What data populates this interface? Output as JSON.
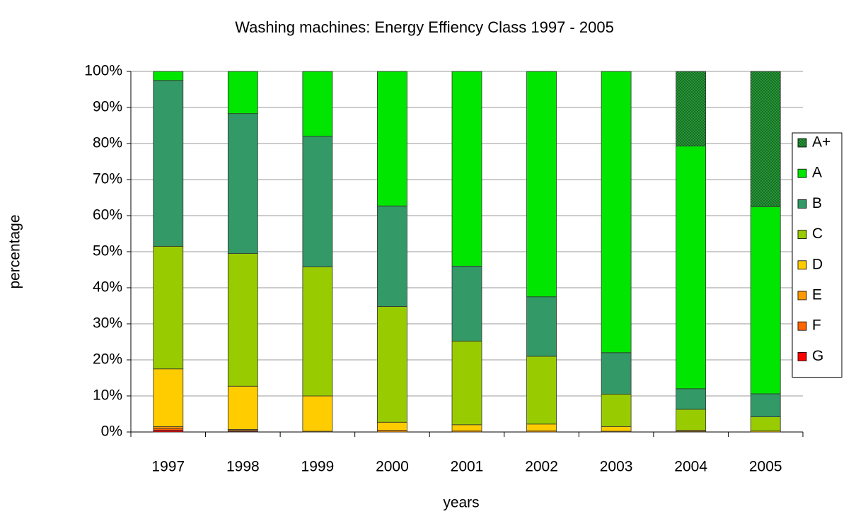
{
  "chart_data": {
    "type": "bar",
    "stacked": true,
    "title": "Washing machines: Energy Effiency Class 1997 - 2005",
    "xlabel": "years",
    "ylabel": "percentage",
    "categories": [
      "1997",
      "1998",
      "1999",
      "2000",
      "2001",
      "2002",
      "2003",
      "2004",
      "2005"
    ],
    "series": [
      {
        "name": "A+",
        "color": "#2e9e3a",
        "hatch": true,
        "values": [
          0,
          0,
          0,
          0,
          0,
          0,
          0,
          20.7,
          37.5
        ]
      },
      {
        "name": "A",
        "color": "#00e600",
        "values": [
          2.5,
          11.7,
          18,
          37.3,
          54,
          62.5,
          78,
          67.3,
          51.9
        ]
      },
      {
        "name": "B",
        "color": "#339966",
        "values": [
          46,
          38.8,
          36.2,
          27.9,
          20.8,
          16.5,
          11.5,
          5.7,
          6.4
        ]
      },
      {
        "name": "C",
        "color": "#99cc00",
        "values": [
          34,
          36.8,
          35.8,
          32.1,
          23.2,
          18.8,
          9,
          5.8,
          3.9
        ]
      },
      {
        "name": "D",
        "color": "#ffcc00",
        "values": [
          16,
          12,
          9.8,
          2.2,
          1.7,
          1.9,
          1.3,
          0.3,
          0.3
        ]
      },
      {
        "name": "E",
        "color": "#ff9900",
        "values": [
          0.5,
          0.3,
          0.2,
          0.5,
          0.3,
          0.3,
          0.2,
          0.2,
          0
        ]
      },
      {
        "name": "F",
        "color": "#ff6600",
        "values": [
          0.5,
          0.2,
          0,
          0,
          0,
          0,
          0,
          0,
          0
        ]
      },
      {
        "name": "G",
        "color": "#ff0000",
        "values": [
          0.5,
          0.2,
          0,
          0,
          0,
          0,
          0,
          0,
          0
        ]
      }
    ],
    "ylim": [
      0,
      100
    ],
    "yticks": [
      {
        "value": 0,
        "label": "0%"
      },
      {
        "value": 10,
        "label": "10%"
      },
      {
        "value": 20,
        "label": "20%"
      },
      {
        "value": 30,
        "label": "30%"
      },
      {
        "value": 40,
        "label": "40%"
      },
      {
        "value": 50,
        "label": "50%"
      },
      {
        "value": 60,
        "label": "60%"
      },
      {
        "value": 70,
        "label": "70%"
      },
      {
        "value": 80,
        "label": "80%"
      },
      {
        "value": 90,
        "label": "90%"
      },
      {
        "value": 100,
        "label": "100%"
      }
    ],
    "grid": true,
    "legend": "right"
  }
}
